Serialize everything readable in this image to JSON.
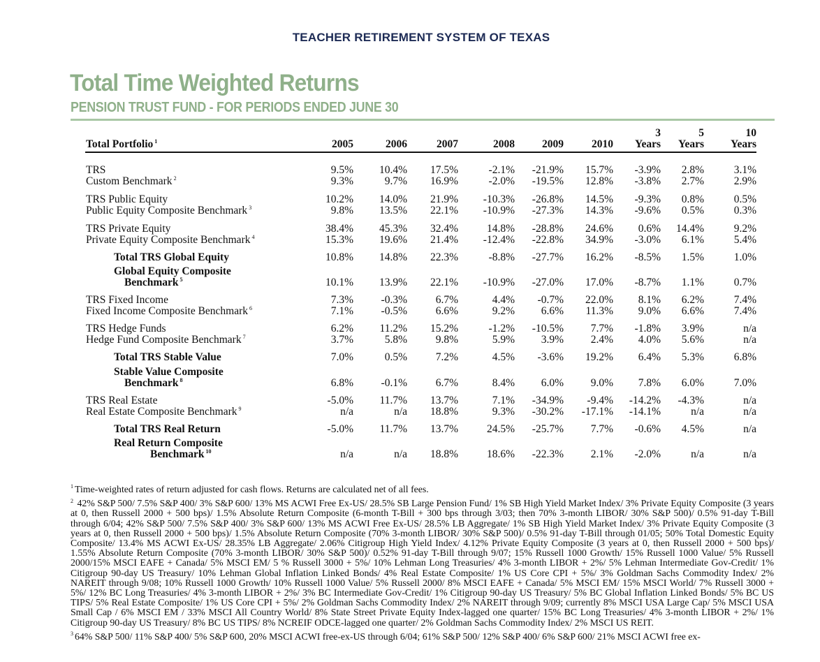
{
  "org_title": "TEACHER RETIREMENT SYSTEM OF TEXAS",
  "title": "Total Time Weighted Returns",
  "subtitle": "PENSION TRUST FUND - FOR PERIODS ENDED JUNE 30",
  "table": {
    "first_header": "Total Portfolio",
    "first_header_note": "1",
    "columns": [
      {
        "top": "",
        "bottom": "2005"
      },
      {
        "top": "",
        "bottom": "2006"
      },
      {
        "top": "",
        "bottom": "2007"
      },
      {
        "top": "",
        "bottom": "2008"
      },
      {
        "top": "",
        "bottom": "2009"
      },
      {
        "top": "",
        "bottom": "2010"
      },
      {
        "top": "3",
        "bottom": "Years"
      },
      {
        "top": "5",
        "bottom": "Years"
      },
      {
        "top": "10",
        "bottom": "Years"
      }
    ],
    "rows": [
      {
        "label": "TRS",
        "note": "",
        "values": [
          "9.5%",
          "10.4%",
          "17.5%",
          "-2.1%",
          "-21.9%",
          "15.7%",
          "-3.9%",
          "2.8%",
          "3.1%"
        ]
      },
      {
        "label": "Custom Benchmark",
        "note": "2",
        "values": [
          "9.3%",
          "9.7%",
          "16.9%",
          "-2.0%",
          "-19.5%",
          "12.8%",
          "-3.8%",
          "2.7%",
          "2.9%"
        ]
      },
      {
        "label": "TRS Public Equity",
        "note": "",
        "values": [
          "10.2%",
          "14.0%",
          "21.9%",
          "-10.3%",
          "-26.8%",
          "14.5%",
          "-9.3%",
          "0.8%",
          "0.5%"
        ]
      },
      {
        "label": "Public Equity Composite Benchmark",
        "note": "3",
        "values": [
          "9.8%",
          "13.5%",
          "22.1%",
          "-10.9%",
          "-27.3%",
          "14.3%",
          "-9.6%",
          "0.5%",
          "0.3%"
        ]
      },
      {
        "label": "TRS Private Equity",
        "note": "",
        "values": [
          "38.4%",
          "45.3%",
          "32.4%",
          "14.8%",
          "-28.8%",
          "24.6%",
          "0.6%",
          "14.4%",
          "9.2%"
        ]
      },
      {
        "label": "Private Equity Composite Benchmark",
        "note": "4",
        "values": [
          "15.3%",
          "19.6%",
          "21.4%",
          "-12.4%",
          "-22.8%",
          "34.9%",
          "-3.0%",
          "6.1%",
          "5.4%"
        ]
      },
      {
        "label": "Total TRS Global Equity",
        "note": "",
        "values": [
          "10.8%",
          "14.8%",
          "22.3%",
          "-8.8%",
          "-27.7%",
          "16.2%",
          "-8.5%",
          "1.5%",
          "1.0%"
        ]
      },
      {
        "label_line1": "Global Equity Composite",
        "label": "Benchmark",
        "note": "5",
        "values": [
          "10.1%",
          "13.9%",
          "22.1%",
          "-10.9%",
          "-27.0%",
          "17.0%",
          "-8.7%",
          "1.1%",
          "0.7%"
        ]
      },
      {
        "label": "TRS Fixed Income",
        "note": "",
        "values": [
          "7.3%",
          "-0.3%",
          "6.7%",
          "4.4%",
          "-0.7%",
          "22.0%",
          "8.1%",
          "6.2%",
          "7.4%"
        ]
      },
      {
        "label": "Fixed Income Composite Benchmark",
        "note": "6",
        "values": [
          "7.1%",
          "-0.5%",
          "6.6%",
          "9.2%",
          "6.6%",
          "11.3%",
          "9.0%",
          "6.6%",
          "7.4%"
        ]
      },
      {
        "label": "TRS Hedge Funds",
        "note": "",
        "values": [
          "6.2%",
          "11.2%",
          "15.2%",
          "-1.2%",
          "-10.5%",
          "7.7%",
          "-1.8%",
          "3.9%",
          "n/a"
        ]
      },
      {
        "label": "Hedge Fund Composite Benchmark",
        "note": "7",
        "values": [
          "3.7%",
          "5.8%",
          "9.8%",
          "5.9%",
          "3.9%",
          "2.4%",
          "4.0%",
          "5.6%",
          "n/a"
        ]
      },
      {
        "label": "Total TRS Stable Value",
        "note": "",
        "values": [
          "7.0%",
          "0.5%",
          "7.2%",
          "4.5%",
          "-3.6%",
          "19.2%",
          "6.4%",
          "5.3%",
          "6.8%"
        ]
      },
      {
        "label_line1": "Stable Value Composite",
        "label": "Benchmark",
        "note": "8",
        "values": [
          "6.8%",
          "-0.1%",
          "6.7%",
          "8.4%",
          "6.0%",
          "9.0%",
          "7.8%",
          "6.0%",
          "7.0%"
        ]
      },
      {
        "label": "TRS Real Estate",
        "note": "",
        "values": [
          "-5.0%",
          "11.7%",
          "13.7%",
          "7.1%",
          "-34.9%",
          "-9.4%",
          "-14.2%",
          "-4.3%",
          "n/a"
        ]
      },
      {
        "label": "Real Estate Composite Benchmark",
        "note": "9",
        "values": [
          "n/a",
          "n/a",
          "18.8%",
          "9.3%",
          "-30.2%",
          "-17.1%",
          "-14.1%",
          "n/a",
          "n/a"
        ]
      },
      {
        "label": "Total TRS Real Return",
        "note": "",
        "values": [
          "-5.0%",
          "11.7%",
          "13.7%",
          "24.5%",
          "-25.7%",
          "7.7%",
          "-0.6%",
          "4.5%",
          "n/a"
        ]
      },
      {
        "label_line1": "Real Return Composite",
        "label": "Benchmark",
        "note": "10",
        "values": [
          "n/a",
          "n/a",
          "18.8%",
          "18.6%",
          "-22.3%",
          "2.1%",
          "-2.0%",
          "n/a",
          "n/a"
        ]
      }
    ]
  },
  "footnotes": [
    {
      "mark": "1",
      "text": "Time-weighted rates of return adjusted for cash flows. Returns are calculated net of all fees."
    },
    {
      "mark": "2",
      "text": "42% S&P 500/ 7.5% S&P 400/ 3% S&P 600/ 13% MS ACWI Free Ex-US/ 28.5% SB Large Pension Fund/ 1% SB High Yield Market Index/ 3% Private Equity Composite (3 years at 0, then Russell 2000 + 500 bps)/ 1.5% Absolute Return Composite (6-month T-Bill + 300 bps through 3/03; then 70% 3-month LIBOR/ 30% S&P 500)/ 0.5% 91-day T-Bill through 6/04; 42% S&P 500/ 7.5% S&P 400/ 3% S&P 600/ 13% MS ACWI Free Ex-US/ 28.5% LB Aggregate/ 1% SB High Yield Market Index/ 3% Private Equity Composite (3 years at 0, then Russell 2000 + 500 bps)/ 1.5% Absolute Return Composite (70% 3-month LIBOR/ 30% S&P 500)/ 0.5% 91-day T-Bill through 01/05;  50% Total Domestic Equity Composite/ 13.4% MS ACWI Ex-US/ 28.35% LB Aggregate/ 2.06% Citigroup High Yield Index/ 4.12% Private Equity Composite (3 years at 0, then Russell 2000 + 500 bps)/ 1.55% Absolute Return Composite (70% 3-month LIBOR/ 30% S&P 500)/ 0.52% 91-day T-Bill through 9/07; 15% Russell 1000 Growth/ 15% Russell 1000 Value/ 5% Russell 2000/15% MSCI EAFE + Canada/ 5% MSCI EM/ 5 % Russell 3000 + 5%/ 10% Lehman Long Treasuries/ 4% 3-month LIBOR + 2%/ 5% Lehman Intermediate Gov-Credit/ 1% Citigroup 90-day US Treasury/ 10% Lehman Global Inflation Linked Bonds/ 4% Real Estate Composite/ 1% US Core CPI + 5%/ 3% Goldman Sachs Commodity Index/ 2% NAREIT through 9/08; 10% Russell 1000 Growth/ 10% Russell 1000 Value/ 5% Russell 2000/ 8% MSCI EAFE + Canada/ 5% MSCI EM/ 15% MSCI World/ 7% Russell 3000 + 5%/ 12% BC Long Treasuries/ 4% 3-month LIBOR + 2%/ 3% BC Intermediate Gov-Credit/ 1% Citigroup 90-day US Treasury/ 5% BC Global Inflation Linked Bonds/ 5% BC US TIPS/ 5% Real Estate Composite/ 1% US Core CPI + 5%/ 2% Goldman Sachs Commodity Index/ 2% NAREIT through 9/09; currently 8% MSCI USA Large Cap/ 5% MSCI USA Small Cap / 6% MSCI EM / 33% MSCI All Country World/ 8% State Street Private Equity Index-lagged one quarter/ 15% BC Long Treasuries/ 4% 3-month LIBOR + 2%/ 1% Citigroup 90-day US Treasury/ 8% BC US TIPS/ 8% NCREIF ODCE-lagged one quarter/ 2% Goldman Sachs Commodity Index/ 2% MSCI US REIT."
    },
    {
      "mark": "3",
      "text": "64% S&P 500/ 11% S&P 400/ 5% S&P 600, 20% MSCI ACWI free-ex-US through 6/04; 61% S&P 500/ 12% S&P 400/ 6% S&P 600/ 21% MSCI ACWI free ex-"
    }
  ]
}
